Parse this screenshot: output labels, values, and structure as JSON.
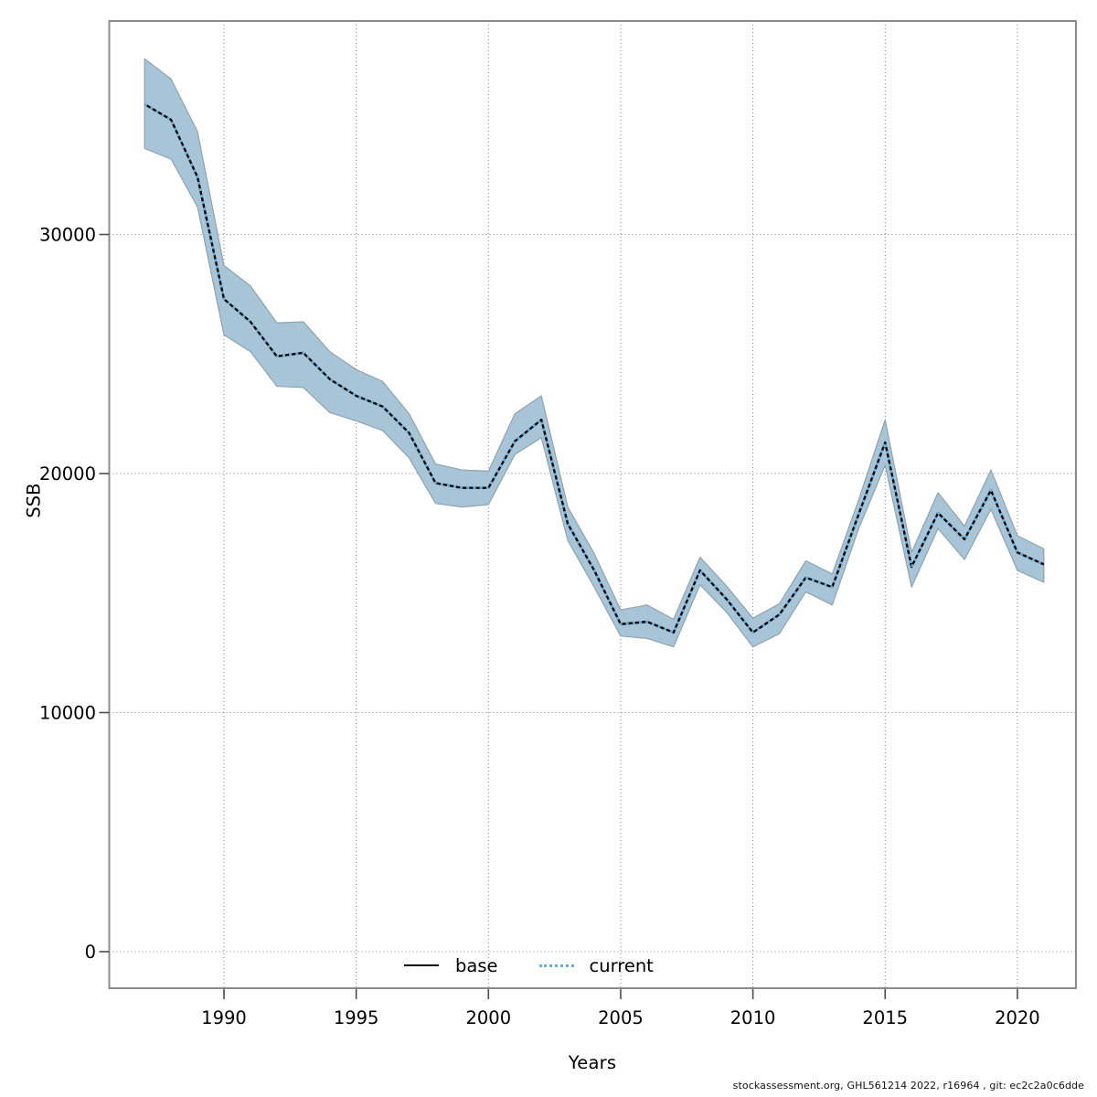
{
  "figure": {
    "footer": "stockassessment.org, GHL561214 2022, r16964 , git: ec2c2a0c6dde"
  },
  "chart_data": {
    "type": "line",
    "title": "",
    "xlabel": "Years",
    "ylabel": "SSB",
    "grid": true,
    "legend_position": "bottom-center-inside",
    "x_ticks": [
      1990,
      1995,
      2000,
      2005,
      2010,
      2015,
      2020
    ],
    "y_ticks": [
      0,
      10000,
      20000,
      30000
    ],
    "xlim": [
      1985.6,
      2022.2
    ],
    "ylim": [
      -1500,
      39200
    ],
    "x": [
      1987,
      1988,
      1989,
      1990,
      1991,
      1992,
      1993,
      1994,
      1995,
      1996,
      1997,
      1998,
      1999,
      2000,
      2001,
      2002,
      2003,
      2004,
      2005,
      2006,
      2007,
      2008,
      2009,
      2010,
      2011,
      2012,
      2013,
      2014,
      2015,
      2016,
      2017,
      2018,
      2019,
      2020,
      2021
    ],
    "series": [
      {
        "name": "base",
        "line": "solid",
        "color": "#000000",
        "values": [
          35450,
          34800,
          32400,
          27300,
          26350,
          24900,
          25050,
          23950,
          23250,
          22800,
          21700,
          19600,
          19400,
          19400,
          21350,
          22250,
          17900,
          15950,
          13700,
          13800,
          13350,
          15950,
          14750,
          13350,
          14100,
          15650,
          15250,
          18300,
          21300,
          16100,
          18350,
          17250,
          19300,
          16700,
          16200
        ]
      },
      {
        "name": "current",
        "line": "dotted",
        "color": "#69AEDB",
        "values": [
          35450,
          34800,
          32400,
          27300,
          26350,
          24900,
          25050,
          23950,
          23250,
          22800,
          21700,
          19600,
          19400,
          19400,
          21350,
          22250,
          17900,
          15950,
          13700,
          13800,
          13350,
          15950,
          14750,
          13350,
          14100,
          15650,
          15250,
          18300,
          21300,
          16100,
          18350,
          17250,
          19300,
          16700,
          16200
        ],
        "band": {
          "color": "#A8C5D8",
          "edge_color": "#8FA2AE",
          "lo": [
            33600,
            33150,
            31150,
            25800,
            25100,
            23650,
            23600,
            22550,
            22200,
            21800,
            20650,
            18750,
            18600,
            18700,
            20800,
            21500,
            17200,
            15250,
            13200,
            13100,
            12750,
            15350,
            14200,
            12750,
            13300,
            15050,
            14500,
            17700,
            20350,
            15250,
            17700,
            16400,
            18500,
            15950,
            15450
          ],
          "hi": [
            37350,
            36500,
            34300,
            28700,
            27850,
            26300,
            26350,
            25100,
            24350,
            23850,
            22500,
            20400,
            20150,
            20100,
            22500,
            23250,
            18600,
            16650,
            14300,
            14500,
            13900,
            16500,
            15300,
            13950,
            14550,
            16350,
            15800,
            18900,
            22250,
            16700,
            19200,
            17800,
            20150,
            17400,
            16850
          ]
        }
      }
    ]
  }
}
